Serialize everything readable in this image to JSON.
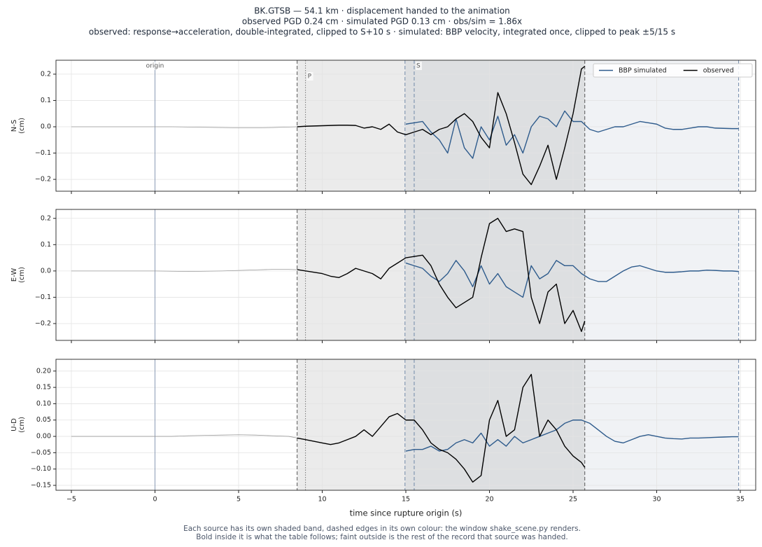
{
  "title_lines": [
    "BK.GTSB  —  54.1 km   ·   displacement handed to the animation",
    "observed PGD 0.24 cm   ·   simulated PGD 0.13 cm   ·   obs/sim = 1.86x",
    "observed: response→acceleration, double-integrated, clipped to S+10 s   ·   simulated: BBP velocity, integrated once, clipped to peak ±5/15 s"
  ],
  "phases": [
    {
      "label": "origin",
      "x": 0,
      "color": "#8a9bb5",
      "style": "solid"
    },
    {
      "label": "P",
      "x": 9.0,
      "color": "#777777",
      "style": "dotted"
    },
    {
      "label": "S",
      "x": 15.5,
      "color": "#6f88a8",
      "style": "dashed"
    }
  ],
  "xlabel": "time since rupture origin (s)",
  "footer": [
    "Each source has its own shaded band, dashed edges in its own colour: the window shake_scene.py renders.",
    "Bold inside it is what the table follows;   faint outside is the rest of the record that source was handed."
  ],
  "chart_data": [
    {
      "type": "line",
      "ylabel": [
        "N-S",
        "(cm)"
      ],
      "xlim": [
        -5.92,
        35.92
      ],
      "ylim": [
        -0.245,
        0.253
      ],
      "grid": true,
      "legend": "upper right",
      "xticks": [
        {
          "value": -5,
          "label": "−5"
        },
        0,
        5,
        10,
        15,
        20,
        25,
        30,
        35
      ],
      "yticks": [
        {
          "value": -0.2,
          "label": "−0.2"
        },
        {
          "value": -0.1,
          "label": "−0.1"
        },
        {
          "value": 0,
          "label": "0.0"
        },
        0.1,
        0.2
      ],
      "series": [
        {
          "name": "BBP simulated",
          "color": "#2e5b8c",
          "window": [
            14.95,
            34.9
          ],
          "band_color": "#3c5a82",
          "edge_color": "#6f88a8",
          "x": [
            15,
            15.5,
            16,
            16.5,
            17,
            17.5,
            18,
            18.5,
            19,
            19.5,
            20,
            20.5,
            21,
            21.5,
            22,
            22.5,
            23,
            23.5,
            24,
            24.5,
            25,
            25.5,
            26,
            26.5,
            27,
            27.5,
            28,
            28.5,
            29,
            29.5,
            30,
            30.5,
            31,
            31.5,
            32,
            32.5,
            33,
            33.5,
            34,
            34.5,
            34.9
          ],
          "values": [
            0.01,
            0.015,
            0.02,
            -0.02,
            -0.05,
            -0.1,
            0.03,
            -0.08,
            -0.12,
            0.0,
            -0.05,
            0.04,
            -0.07,
            -0.03,
            -0.1,
            0.0,
            0.04,
            0.03,
            0.0,
            0.06,
            0.02,
            0.02,
            -0.01,
            -0.02,
            -0.01,
            0.0,
            0.0,
            0.01,
            0.02,
            0.015,
            0.01,
            -0.005,
            -0.01,
            -0.01,
            -0.005,
            0.0,
            0.0,
            -0.005,
            -0.006,
            -0.007,
            -0.007
          ]
        },
        {
          "name": "observed",
          "color": "#000000",
          "faint_color": "#9a9a9a",
          "window": [
            8.5,
            25.7
          ],
          "band_color": "#000000",
          "edge_color": "#555555",
          "x": [
            -5,
            -4,
            -3,
            -2,
            -1,
            0,
            1,
            2,
            3,
            4,
            5,
            6,
            7,
            8,
            8.5,
            9,
            9.5,
            10,
            10.5,
            11,
            11.5,
            12,
            12.5,
            13,
            13.5,
            14,
            14.5,
            15,
            15.5,
            16,
            16.5,
            17,
            17.5,
            18,
            18.5,
            19,
            19.5,
            20,
            20.5,
            21,
            21.5,
            22,
            22.5,
            23,
            23.5,
            24,
            24.5,
            25,
            25.5,
            25.7
          ],
          "values": [
            0,
            0,
            0,
            0,
            0,
            0,
            0,
            -0.001,
            -0.002,
            -0.003,
            -0.004,
            -0.004,
            -0.003,
            -0.001,
            0.0,
            0.002,
            0.003,
            0.004,
            0.005,
            0.006,
            0.006,
            0.005,
            -0.005,
            0.0,
            -0.01,
            0.01,
            -0.02,
            -0.03,
            -0.02,
            -0.01,
            -0.03,
            -0.01,
            0.0,
            0.03,
            0.05,
            0.02,
            -0.04,
            -0.08,
            0.13,
            0.05,
            -0.06,
            -0.18,
            -0.22,
            -0.15,
            -0.07,
            -0.2,
            -0.08,
            0.05,
            0.22,
            0.23
          ]
        }
      ]
    },
    {
      "type": "line",
      "ylabel": [
        "E-W",
        "(cm)"
      ],
      "xlim": [
        -5.92,
        35.92
      ],
      "ylim": [
        -0.264,
        0.234
      ],
      "grid": true,
      "xticks": [
        {
          "value": -5,
          "label": "−5"
        },
        0,
        5,
        10,
        15,
        20,
        25,
        30,
        35
      ],
      "yticks": [
        {
          "value": -0.2,
          "label": "−0.2"
        },
        {
          "value": -0.1,
          "label": "−0.1"
        },
        {
          "value": 0,
          "label": "0.0"
        },
        0.1,
        0.2
      ],
      "series": [
        {
          "color": "#2e5b8c",
          "window": [
            14.95,
            34.9
          ],
          "band_color": "#3c5a82",
          "edge_color": "#6f88a8",
          "x": [
            15,
            15.5,
            16,
            16.5,
            17,
            17.5,
            18,
            18.5,
            19,
            19.5,
            20,
            20.5,
            21,
            21.5,
            22,
            22.5,
            23,
            23.5,
            24,
            24.5,
            25,
            25.5,
            26,
            26.5,
            27,
            27.5,
            28,
            28.5,
            29,
            29.5,
            30,
            30.5,
            31,
            31.5,
            32,
            32.5,
            33,
            33.5,
            34,
            34.5,
            34.9
          ],
          "values": [
            0.03,
            0.02,
            0.01,
            -0.02,
            -0.04,
            -0.01,
            0.04,
            0.0,
            -0.06,
            0.02,
            -0.05,
            -0.01,
            -0.06,
            -0.08,
            -0.1,
            0.02,
            -0.03,
            -0.01,
            0.04,
            0.02,
            0.02,
            -0.01,
            -0.03,
            -0.04,
            -0.04,
            -0.02,
            0.0,
            0.015,
            0.02,
            0.01,
            0.0,
            -0.005,
            -0.005,
            -0.003,
            0.0,
            0.0,
            0.003,
            0.002,
            0.0,
            0.0,
            -0.002
          ]
        },
        {
          "color": "#000000",
          "faint_color": "#9a9a9a",
          "window": [
            8.5,
            25.7
          ],
          "band_color": "#000000",
          "edge_color": "#555555",
          "x": [
            -5,
            -4,
            -3,
            -2,
            -1,
            0,
            1,
            2,
            3,
            4,
            5,
            6,
            7,
            8,
            8.5,
            9,
            9.5,
            10,
            10.5,
            11,
            11.5,
            12,
            12.5,
            13,
            13.5,
            14,
            14.5,
            15,
            15.5,
            16,
            16.5,
            17,
            17.5,
            18,
            18.5,
            19,
            19.5,
            20,
            20.5,
            21,
            21.5,
            22,
            22.5,
            23,
            23.5,
            24,
            24.5,
            25,
            25.5,
            25.7
          ],
          "values": [
            0,
            0,
            0,
            0,
            0,
            0,
            -0.001,
            -0.002,
            -0.001,
            0.0,
            0.002,
            0.004,
            0.006,
            0.006,
            0.005,
            0.0,
            -0.005,
            -0.01,
            -0.02,
            -0.025,
            -0.01,
            0.01,
            0.0,
            -0.01,
            -0.03,
            0.01,
            0.03,
            0.05,
            0.055,
            0.06,
            0.02,
            -0.05,
            -0.1,
            -0.14,
            -0.12,
            -0.1,
            0.05,
            0.18,
            0.2,
            0.15,
            0.16,
            0.15,
            -0.1,
            -0.2,
            -0.08,
            -0.05,
            -0.2,
            -0.15,
            -0.23,
            -0.19
          ]
        }
      ]
    },
    {
      "type": "line",
      "ylabel": [
        "U-D",
        "(cm)"
      ],
      "xlim": [
        -5.92,
        35.92
      ],
      "ylim": [
        -0.165,
        0.236
      ],
      "grid": true,
      "xticks": [
        {
          "value": -5,
          "label": "−5"
        },
        0,
        5,
        10,
        15,
        20,
        25,
        30,
        35
      ],
      "yticks": [
        {
          "value": -0.15,
          "label": "−0.15"
        },
        {
          "value": -0.1,
          "label": "−0.10"
        },
        {
          "value": -0.05,
          "label": "−0.05"
        },
        {
          "value": 0,
          "label": "0.00"
        },
        0.05,
        {
          "value": 0.1,
          "label": "0.10"
        },
        0.15,
        {
          "value": 0.2,
          "label": "0.20"
        }
      ],
      "series": [
        {
          "color": "#2e5b8c",
          "window": [
            14.95,
            34.9
          ],
          "band_color": "#3c5a82",
          "edge_color": "#6f88a8",
          "x": [
            15,
            15.5,
            16,
            16.5,
            17,
            17.5,
            18,
            18.5,
            19,
            19.5,
            20,
            20.5,
            21,
            21.5,
            22,
            22.5,
            23,
            23.5,
            24,
            24.5,
            25,
            25.5,
            26,
            26.5,
            27,
            27.5,
            28,
            28.5,
            29,
            29.5,
            30,
            30.5,
            31,
            31.5,
            32,
            32.5,
            33,
            33.5,
            34,
            34.5,
            34.9
          ],
          "values": [
            -0.045,
            -0.04,
            -0.04,
            -0.03,
            -0.045,
            -0.04,
            -0.02,
            -0.01,
            -0.02,
            0.01,
            -0.03,
            -0.01,
            -0.03,
            0.0,
            -0.02,
            -0.01,
            0.0,
            0.01,
            0.02,
            0.04,
            0.05,
            0.05,
            0.04,
            0.02,
            0.0,
            -0.015,
            -0.02,
            -0.01,
            0.0,
            0.005,
            0.0,
            -0.005,
            -0.007,
            -0.008,
            -0.005,
            -0.005,
            -0.004,
            -0.003,
            -0.002,
            -0.001,
            -0.001
          ]
        },
        {
          "color": "#000000",
          "faint_color": "#9a9a9a",
          "window": [
            8.5,
            25.7
          ],
          "band_color": "#000000",
          "edge_color": "#555555",
          "x": [
            -5,
            -4,
            -3,
            -2,
            -1,
            0,
            1,
            2,
            3,
            4,
            5,
            6,
            7,
            8,
            8.5,
            9,
            9.5,
            10,
            10.5,
            11,
            11.5,
            12,
            12.5,
            13,
            13.5,
            14,
            14.5,
            15,
            15.5,
            16,
            16.5,
            17,
            17.5,
            18,
            18.5,
            19,
            19.5,
            20,
            20.5,
            21,
            21.5,
            22,
            22.5,
            23,
            23.5,
            24,
            24.5,
            25,
            25.5,
            25.7
          ],
          "values": [
            0,
            0,
            0,
            0,
            0,
            0,
            0.0,
            0.002,
            0.003,
            0.004,
            0.005,
            0.004,
            0.002,
            0.0,
            -0.005,
            -0.01,
            -0.015,
            -0.02,
            -0.025,
            -0.02,
            -0.01,
            0.0,
            0.02,
            0.0,
            0.03,
            0.06,
            0.07,
            0.05,
            0.05,
            0.02,
            -0.02,
            -0.04,
            -0.05,
            -0.07,
            -0.1,
            -0.14,
            -0.12,
            0.05,
            0.11,
            0.0,
            0.02,
            0.15,
            0.19,
            0.0,
            0.05,
            0.02,
            -0.03,
            -0.06,
            -0.08,
            -0.095
          ]
        }
      ]
    }
  ]
}
